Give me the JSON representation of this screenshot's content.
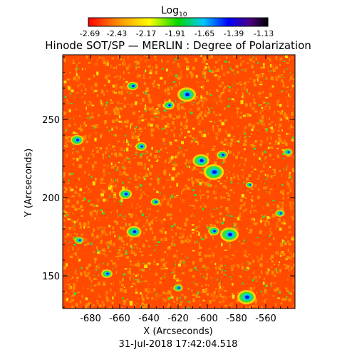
{
  "colorbar": {
    "title_main": "Log",
    "title_sub": "10",
    "ticks": [
      "-2.69",
      "-2.43",
      "-2.17",
      "-1.91",
      "-1.65",
      "-1.39",
      "-1.13"
    ],
    "colors": [
      "#ff0000",
      "#ff8800",
      "#ffff00",
      "#00dd00",
      "#00ccff",
      "#0000ff",
      "#4b0082",
      "#000000"
    ]
  },
  "title": "Hinode SOT/SP — MERLIN : Degree of Polarization",
  "axes": {
    "xlabel": "X (Arcseconds)",
    "ylabel": "Y (Arcseconds)",
    "x_ticks": [
      "-680",
      "-660",
      "-640",
      "-620",
      "-600",
      "-580",
      "-560"
    ],
    "y_ticks": [
      "250",
      "200",
      "150"
    ]
  },
  "timestamp": "31-Jul-2018 17:42:04.518",
  "palette": {
    "background": "#ff4a00",
    "orange": "#ff8c00",
    "yellow": "#ffe000",
    "green": "#2ee04a",
    "cyan": "#00c8ff",
    "blue": "#0018e0"
  }
}
